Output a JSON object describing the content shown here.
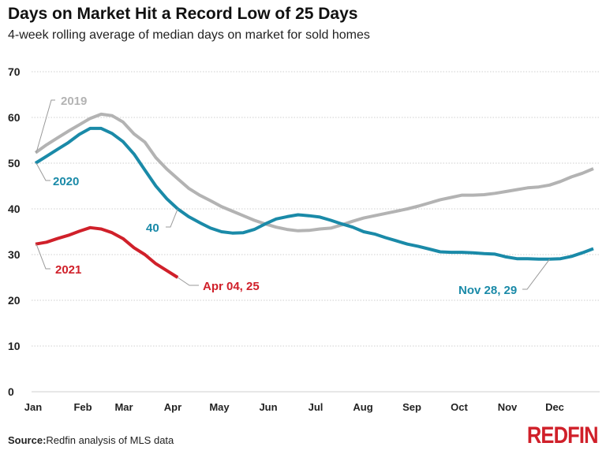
{
  "chart_data": {
    "type": "line",
    "title": "Days on Market Hit a Record Low of 25 Days",
    "subtitle": "4-week rolling average of median days on market for sold homes",
    "ylim": [
      0,
      70
    ],
    "yticks": [
      0,
      10,
      20,
      30,
      40,
      50,
      60,
      70
    ],
    "xtick_labels": [
      "Jan",
      "Feb",
      "Mar",
      "Apr",
      "May",
      "Jun",
      "Jul",
      "Aug",
      "Sep",
      "Oct",
      "Nov",
      "Dec"
    ],
    "grid": true,
    "series": [
      {
        "name": "2019",
        "color": "#b3b3b3",
        "values": [
          52.3,
          54,
          55.5,
          57,
          58.4,
          59.8,
          60.7,
          60.4,
          59,
          56.4,
          54.6,
          51.2,
          48.7,
          46.6,
          44.5,
          43,
          41.8,
          40.5,
          39.5,
          38.5,
          37.5,
          36.7,
          36,
          35.5,
          35.2,
          35.3,
          35.6,
          35.8,
          36.5,
          37.3,
          38,
          38.5,
          39,
          39.5,
          40,
          40.6,
          41.3,
          42,
          42.5,
          43,
          43,
          43.1,
          43.4,
          43.8,
          44.2,
          44.6,
          44.8,
          45.2,
          46,
          47,
          47.8,
          48.8
        ]
      },
      {
        "name": "2020",
        "color": "#1a8aa8",
        "values": [
          50,
          51.5,
          53,
          54.5,
          56.3,
          57.6,
          57.6,
          56.5,
          54.7,
          52,
          48.5,
          45,
          42.2,
          40,
          38.3,
          37,
          35.8,
          35,
          34.7,
          34.8,
          35.5,
          36.7,
          37.8,
          38.3,
          38.7,
          38.5,
          38.2,
          37.5,
          36.7,
          36,
          35,
          34.5,
          33.7,
          33,
          32.3,
          31.8,
          31.2,
          30.6,
          30.5,
          30.5,
          30.4,
          30.2,
          30.1,
          29.5,
          29.1,
          29.1,
          29,
          29,
          29.1,
          29.6,
          30.4,
          31.3
        ]
      },
      {
        "name": "2021",
        "color": "#d0202a",
        "values": [
          32.3,
          32.7,
          33.5,
          34.2,
          35.1,
          35.9,
          35.6,
          34.8,
          33.5,
          31.5,
          30,
          28,
          26.5,
          25
        ]
      }
    ],
    "annotations": [
      {
        "text": "40",
        "series": "2020"
      },
      {
        "text": "Apr 04, 25",
        "series": "2021"
      },
      {
        "text": "Nov 28, 29",
        "series": "2020"
      }
    ]
  },
  "source_label": "Source:",
  "source_text": "Redfin analysis of MLS data",
  "logo": "REDFIN"
}
